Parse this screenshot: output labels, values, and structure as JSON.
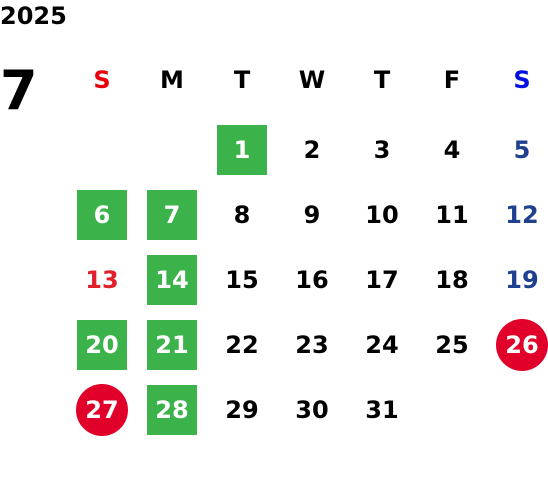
{
  "calendar": {
    "year": "2025",
    "month": "7",
    "weekdays": [
      {
        "label": "S",
        "color": "#e8000b"
      },
      {
        "label": "M",
        "color": "#000000"
      },
      {
        "label": "T",
        "color": "#000000"
      },
      {
        "label": "W",
        "color": "#000000"
      },
      {
        "label": "T",
        "color": "#000000"
      },
      {
        "label": "F",
        "color": "#000000"
      },
      {
        "label": "S",
        "color": "#0010e0"
      }
    ],
    "weeks": [
      [
        null,
        null,
        {
          "day": 1,
          "color": "#ffffff",
          "mark": "square"
        },
        {
          "day": 2,
          "color": "#000000"
        },
        {
          "day": 3,
          "color": "#000000"
        },
        {
          "day": 4,
          "color": "#000000"
        },
        {
          "day": 5,
          "color": "#1f3f8f"
        }
      ],
      [
        {
          "day": 6,
          "color": "#ffffff",
          "mark": "square"
        },
        {
          "day": 7,
          "color": "#ffffff",
          "mark": "square"
        },
        {
          "day": 8,
          "color": "#000000"
        },
        {
          "day": 9,
          "color": "#000000"
        },
        {
          "day": 10,
          "color": "#000000"
        },
        {
          "day": 11,
          "color": "#000000"
        },
        {
          "day": 12,
          "color": "#1f3f8f"
        }
      ],
      [
        {
          "day": 13,
          "color": "#e0202a"
        },
        {
          "day": 14,
          "color": "#ffffff",
          "mark": "square"
        },
        {
          "day": 15,
          "color": "#000000"
        },
        {
          "day": 16,
          "color": "#000000"
        },
        {
          "day": 17,
          "color": "#000000"
        },
        {
          "day": 18,
          "color": "#000000"
        },
        {
          "day": 19,
          "color": "#1f3f8f"
        }
      ],
      [
        {
          "day": 20,
          "color": "#ffffff",
          "mark": "square"
        },
        {
          "day": 21,
          "color": "#ffffff",
          "mark": "square"
        },
        {
          "day": 22,
          "color": "#000000"
        },
        {
          "day": 23,
          "color": "#000000"
        },
        {
          "day": 24,
          "color": "#000000"
        },
        {
          "day": 25,
          "color": "#000000"
        },
        {
          "day": 26,
          "color": "#ffffff",
          "mark": "circle"
        }
      ],
      [
        {
          "day": 27,
          "color": "#ffffff",
          "mark": "circle"
        },
        {
          "day": 28,
          "color": "#ffffff",
          "mark": "square"
        },
        {
          "day": 29,
          "color": "#000000"
        },
        {
          "day": 30,
          "color": "#000000"
        },
        {
          "day": 31,
          "color": "#000000"
        },
        null,
        null
      ]
    ],
    "mark_colors": {
      "square": "#3cb34a",
      "circle": "#e0002a"
    }
  }
}
